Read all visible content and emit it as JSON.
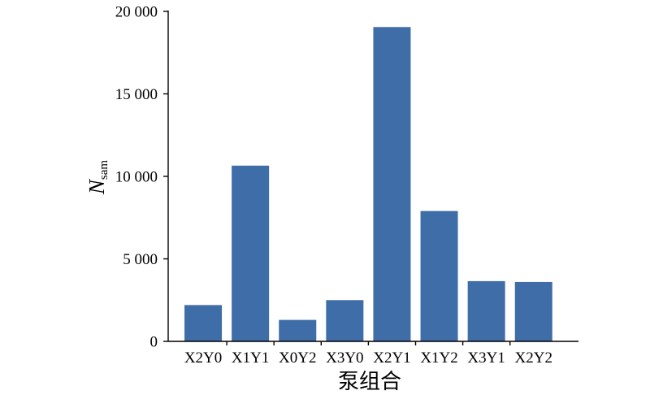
{
  "chart_data": {
    "type": "bar",
    "categories": [
      "X2Y0",
      "X1Y1",
      "X0Y2",
      "X3Y0",
      "X2Y1",
      "X1Y2",
      "X3Y1",
      "X2Y2"
    ],
    "values": [
      2200,
      10650,
      1300,
      2500,
      19050,
      7900,
      3650,
      3600
    ],
    "xlabel": "泵组合",
    "ylabel": "N",
    "ylabel_subscript": "sam",
    "ylim": [
      0,
      20000
    ],
    "yticks": [
      20000,
      15000,
      10000,
      5000,
      0
    ],
    "ytick_labels": [
      "20 000",
      "15 000",
      "10 000",
      "5 000",
      "0"
    ],
    "grid": false,
    "legend": "none",
    "bar_color": "#3e6da8"
  }
}
